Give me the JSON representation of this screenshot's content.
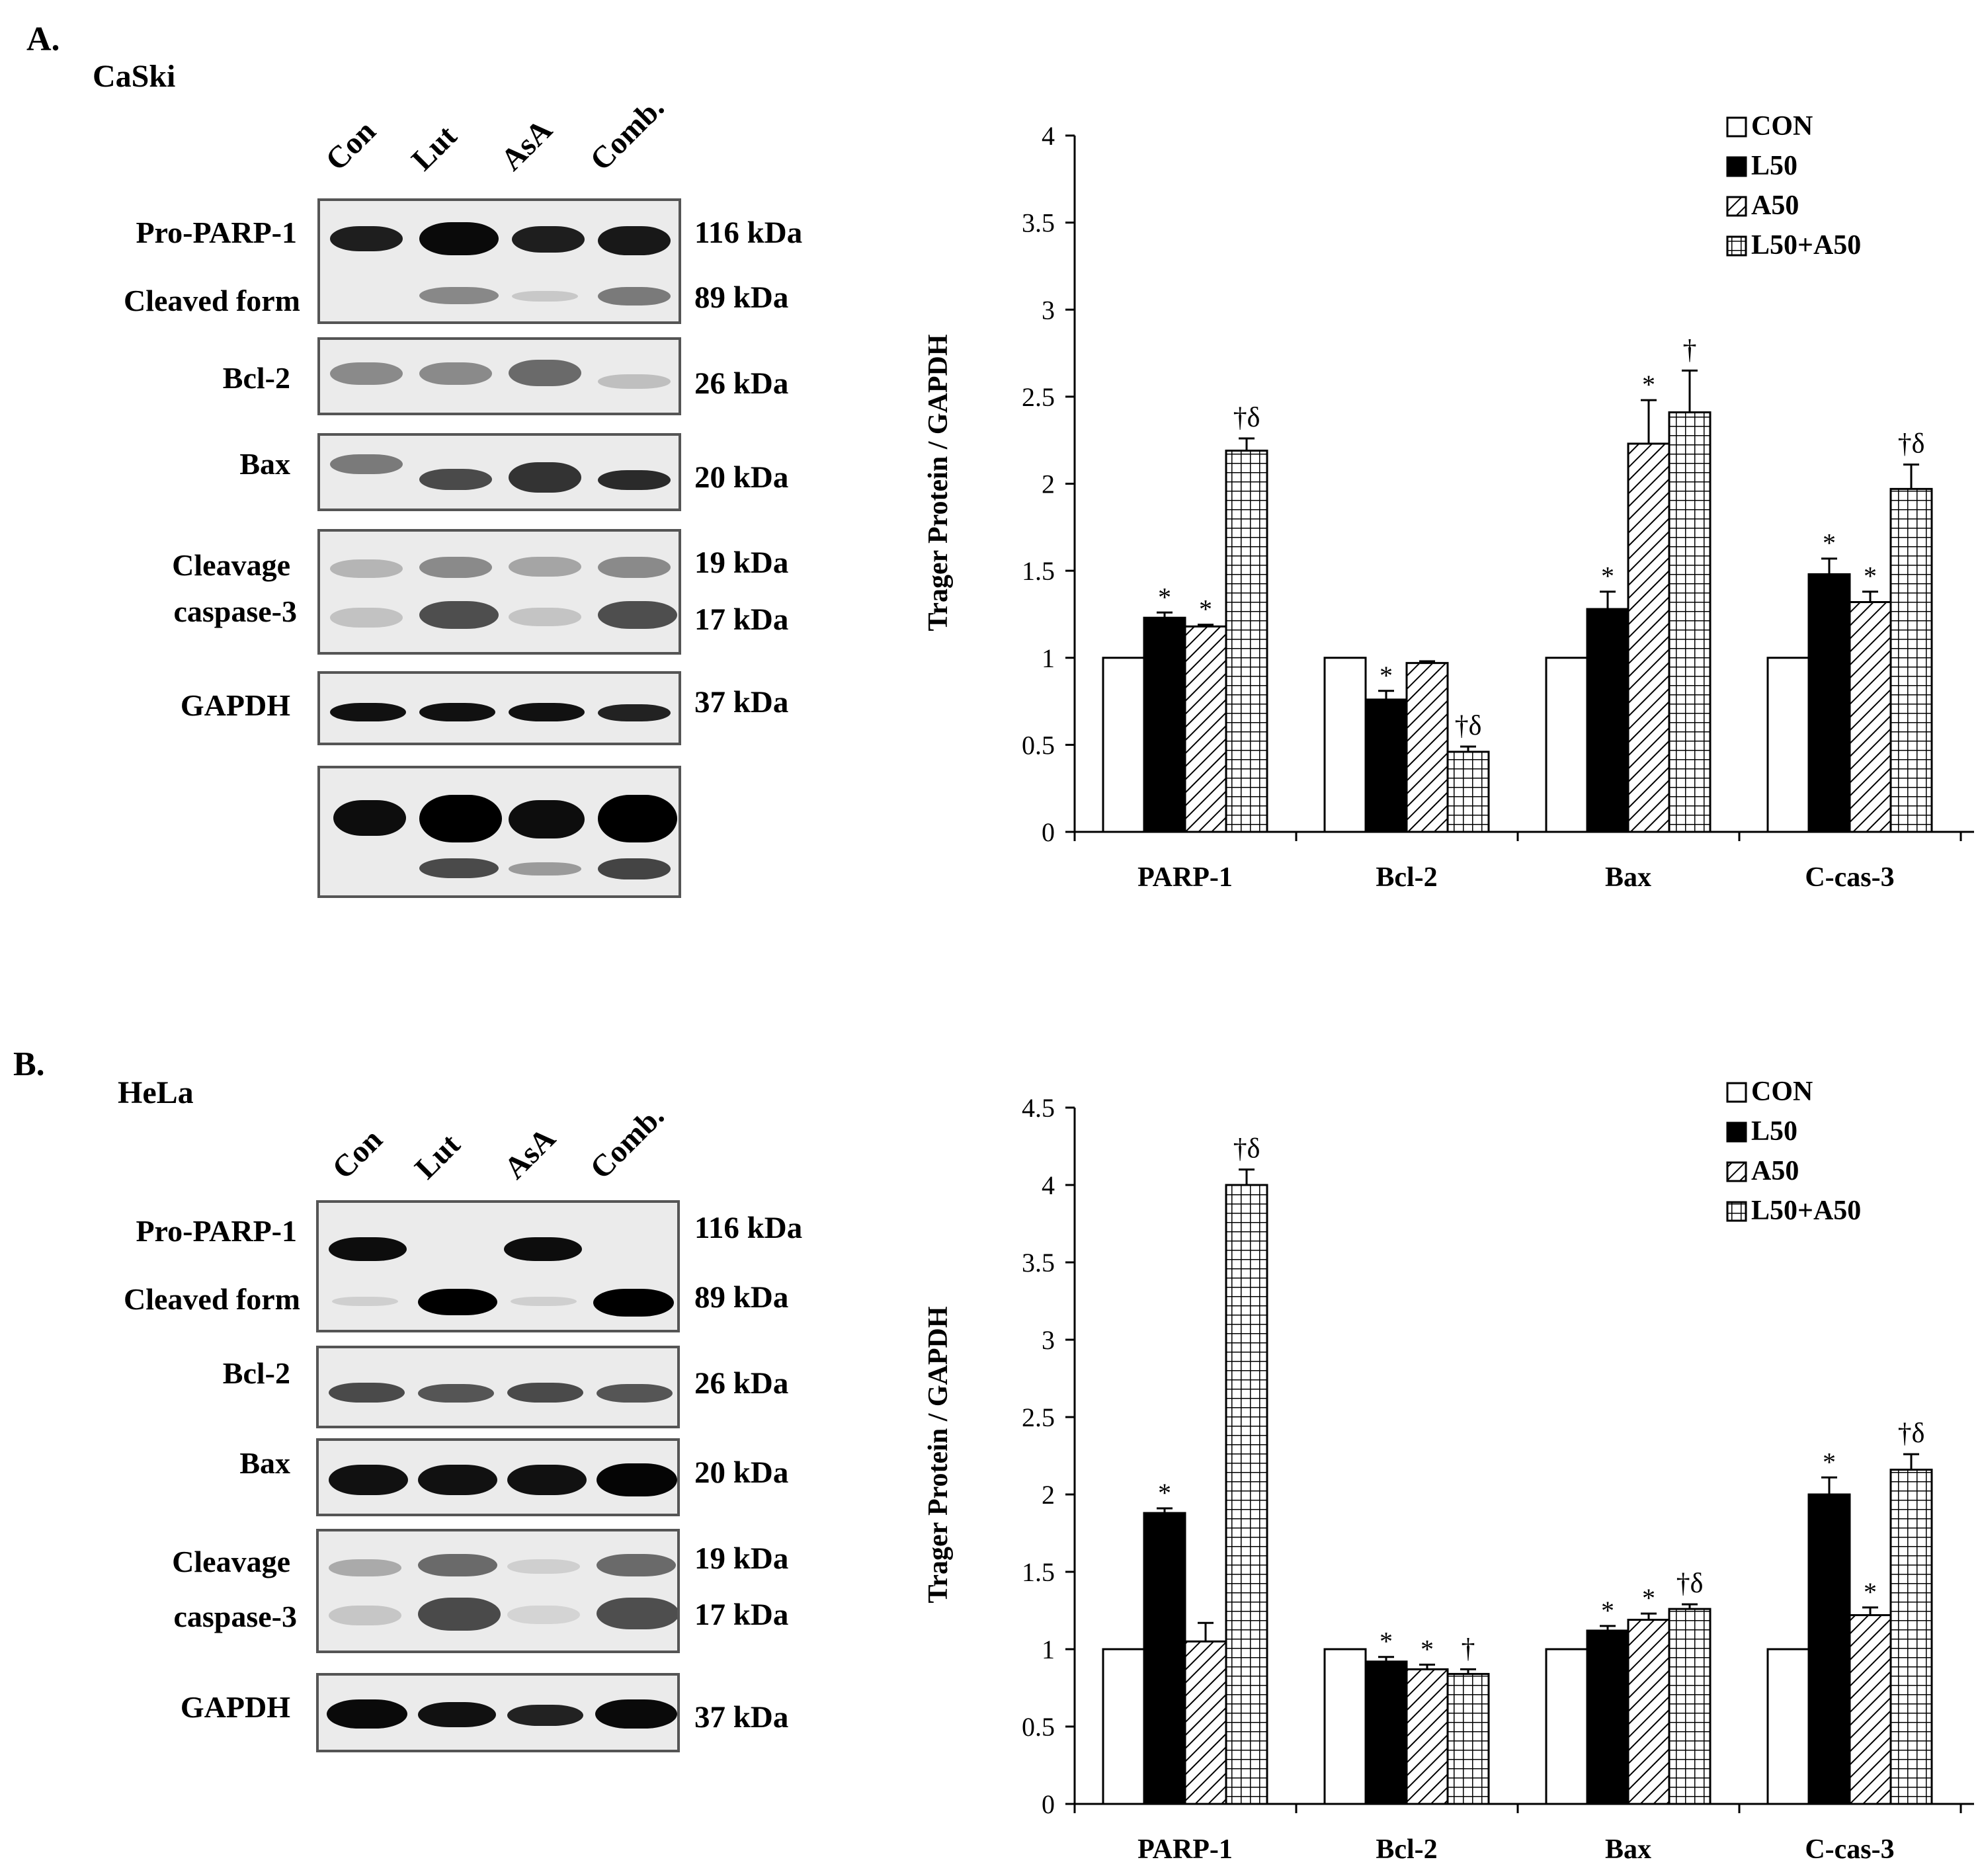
{
  "panels": [
    {
      "letter": "A.",
      "cell_line": "CaSki",
      "lanes": [
        "Con",
        "Lut",
        "AsA",
        "Comb."
      ],
      "blot_rows": [
        {
          "label": "Pro-PARP-1",
          "kda": "116 kDa"
        },
        {
          "label": "Cleaved form",
          "kda": "89 kDa"
        },
        {
          "label": "Bcl-2",
          "kda": "26 kDa"
        },
        {
          "label": "Bax",
          "kda": "20 kDa"
        },
        {
          "label": "Cleavage",
          "kda": "19 kDa"
        },
        {
          "label": "caspase-3",
          "kda": "17 kDa"
        },
        {
          "label": "GAPDH",
          "kda": "37 kDa"
        }
      ]
    },
    {
      "letter": "B.",
      "cell_line": "HeLa",
      "lanes": [
        "Con",
        "Lut",
        "AsA",
        "Comb."
      ],
      "blot_rows": [
        {
          "label": "Pro-PARP-1",
          "kda": "116 kDa"
        },
        {
          "label": "Cleaved form",
          "kda": "89 kDa"
        },
        {
          "label": "Bcl-2",
          "kda": "26 kDa"
        },
        {
          "label": "Bax",
          "kda": "20 kDa"
        },
        {
          "label": "Cleavage",
          "kda": "19 kDa"
        },
        {
          "label": "caspase-3",
          "kda": "17 kDa"
        },
        {
          "label": "GAPDH",
          "kda": "37 kDa"
        }
      ]
    }
  ],
  "colors": {
    "bar_fill_con": "#ffffff",
    "bar_fill_l50": "#000000",
    "axis": "#000000",
    "blot_bg": "#ebebeb",
    "band": "#1a1a1a"
  },
  "chart_data": [
    {
      "type": "bar",
      "ylabel": "Trager Protein / GAPDH",
      "ylim": [
        0,
        4
      ],
      "yticks": [
        "0",
        "0.5",
        "1",
        "1.5",
        "2",
        "2.5",
        "3",
        "3.5",
        "4"
      ],
      "categories": [
        "PARP-1",
        "Bcl-2",
        "Bax",
        "C-cas-3"
      ],
      "legend_position": "top-right",
      "series": [
        {
          "name": "CON",
          "pattern": "open",
          "values": [
            1,
            1,
            1,
            1
          ],
          "errors": [
            0,
            0,
            0,
            0
          ],
          "annotations": [
            "",
            "",
            "",
            ""
          ]
        },
        {
          "name": "L50",
          "pattern": "solid",
          "values": [
            1.23,
            0.76,
            1.28,
            1.48
          ],
          "errors": [
            0.03,
            0.05,
            0.1,
            0.09
          ],
          "annotations": [
            "*",
            "*",
            "*",
            "*"
          ]
        },
        {
          "name": "A50",
          "pattern": "hatch",
          "values": [
            1.18,
            0.97,
            2.23,
            1.32
          ],
          "errors": [
            0.01,
            0.01,
            0.25,
            0.06
          ],
          "annotations": [
            "*",
            "",
            "*",
            "*"
          ]
        },
        {
          "name": "L50+A50",
          "pattern": "grid",
          "values": [
            2.19,
            0.46,
            2.41,
            1.97
          ],
          "errors": [
            0.07,
            0.03,
            0.24,
            0.14
          ],
          "annotations": [
            "†δ",
            "†δ",
            "†",
            "†δ"
          ]
        }
      ]
    },
    {
      "type": "bar",
      "ylabel": "Trager Protein / GAPDH",
      "ylim": [
        0,
        4.5
      ],
      "yticks": [
        "0",
        "0.5",
        "1",
        "1.5",
        "2",
        "2.5",
        "3",
        "3.5",
        "4",
        "4.5"
      ],
      "categories": [
        "PARP-1",
        "Bcl-2",
        "Bax",
        "C-cas-3"
      ],
      "legend_position": "top-right",
      "series": [
        {
          "name": "CON",
          "pattern": "open",
          "values": [
            1,
            1,
            1,
            1
          ],
          "errors": [
            0,
            0,
            0,
            0
          ],
          "annotations": [
            "",
            "",
            "",
            ""
          ]
        },
        {
          "name": "L50",
          "pattern": "solid",
          "values": [
            1.88,
            0.92,
            1.12,
            2.0
          ],
          "errors": [
            0.03,
            0.03,
            0.03,
            0.11
          ],
          "annotations": [
            "*",
            "*",
            "*",
            "*"
          ]
        },
        {
          "name": "A50",
          "pattern": "hatch",
          "values": [
            1.05,
            0.87,
            1.19,
            1.22
          ],
          "errors": [
            0.12,
            0.03,
            0.04,
            0.05
          ],
          "annotations": [
            "",
            "*",
            "*",
            "*"
          ]
        },
        {
          "name": "L50+A50",
          "pattern": "grid",
          "values": [
            4.0,
            0.84,
            1.26,
            2.16
          ],
          "errors": [
            0.1,
            0.03,
            0.03,
            0.1
          ],
          "annotations": [
            "†δ",
            "†",
            "†δ",
            "†δ"
          ]
        }
      ]
    }
  ]
}
